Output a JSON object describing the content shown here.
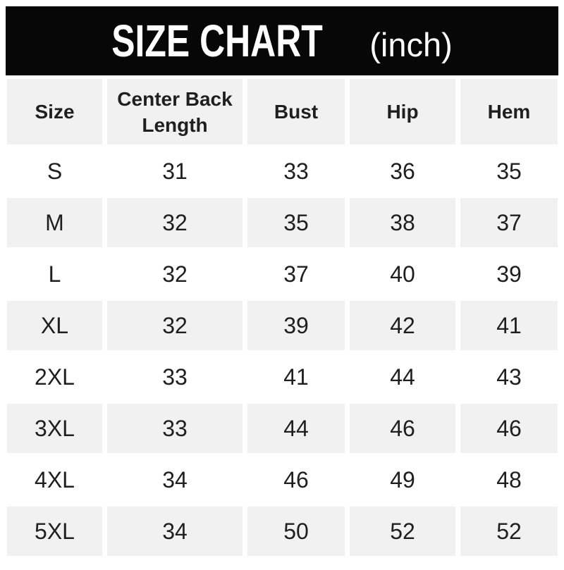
{
  "title": {
    "main": "SIZE CHART",
    "unit": "(inch)"
  },
  "chart_data": {
    "type": "table",
    "title": "SIZE CHART (inch)",
    "unit": "inch",
    "columns": [
      "Size",
      "Center Back Length",
      "Bust",
      "Hip",
      "Hem"
    ],
    "rows": [
      [
        "S",
        31,
        33,
        36,
        35
      ],
      [
        "M",
        32,
        35,
        38,
        37
      ],
      [
        "L",
        32,
        37,
        40,
        39
      ],
      [
        "XL",
        32,
        39,
        42,
        41
      ],
      [
        "2XL",
        33,
        41,
        44,
        43
      ],
      [
        "3XL",
        33,
        44,
        46,
        46
      ],
      [
        "4XL",
        34,
        46,
        49,
        48
      ],
      [
        "5XL",
        34,
        50,
        52,
        52
      ]
    ]
  },
  "colors": {
    "banner_bg": "#070707",
    "banner_text": "#ffffff",
    "alt_row_bg": "#f1f1f1",
    "row_bg": "#ffffff",
    "text": "#1f1f1f"
  }
}
